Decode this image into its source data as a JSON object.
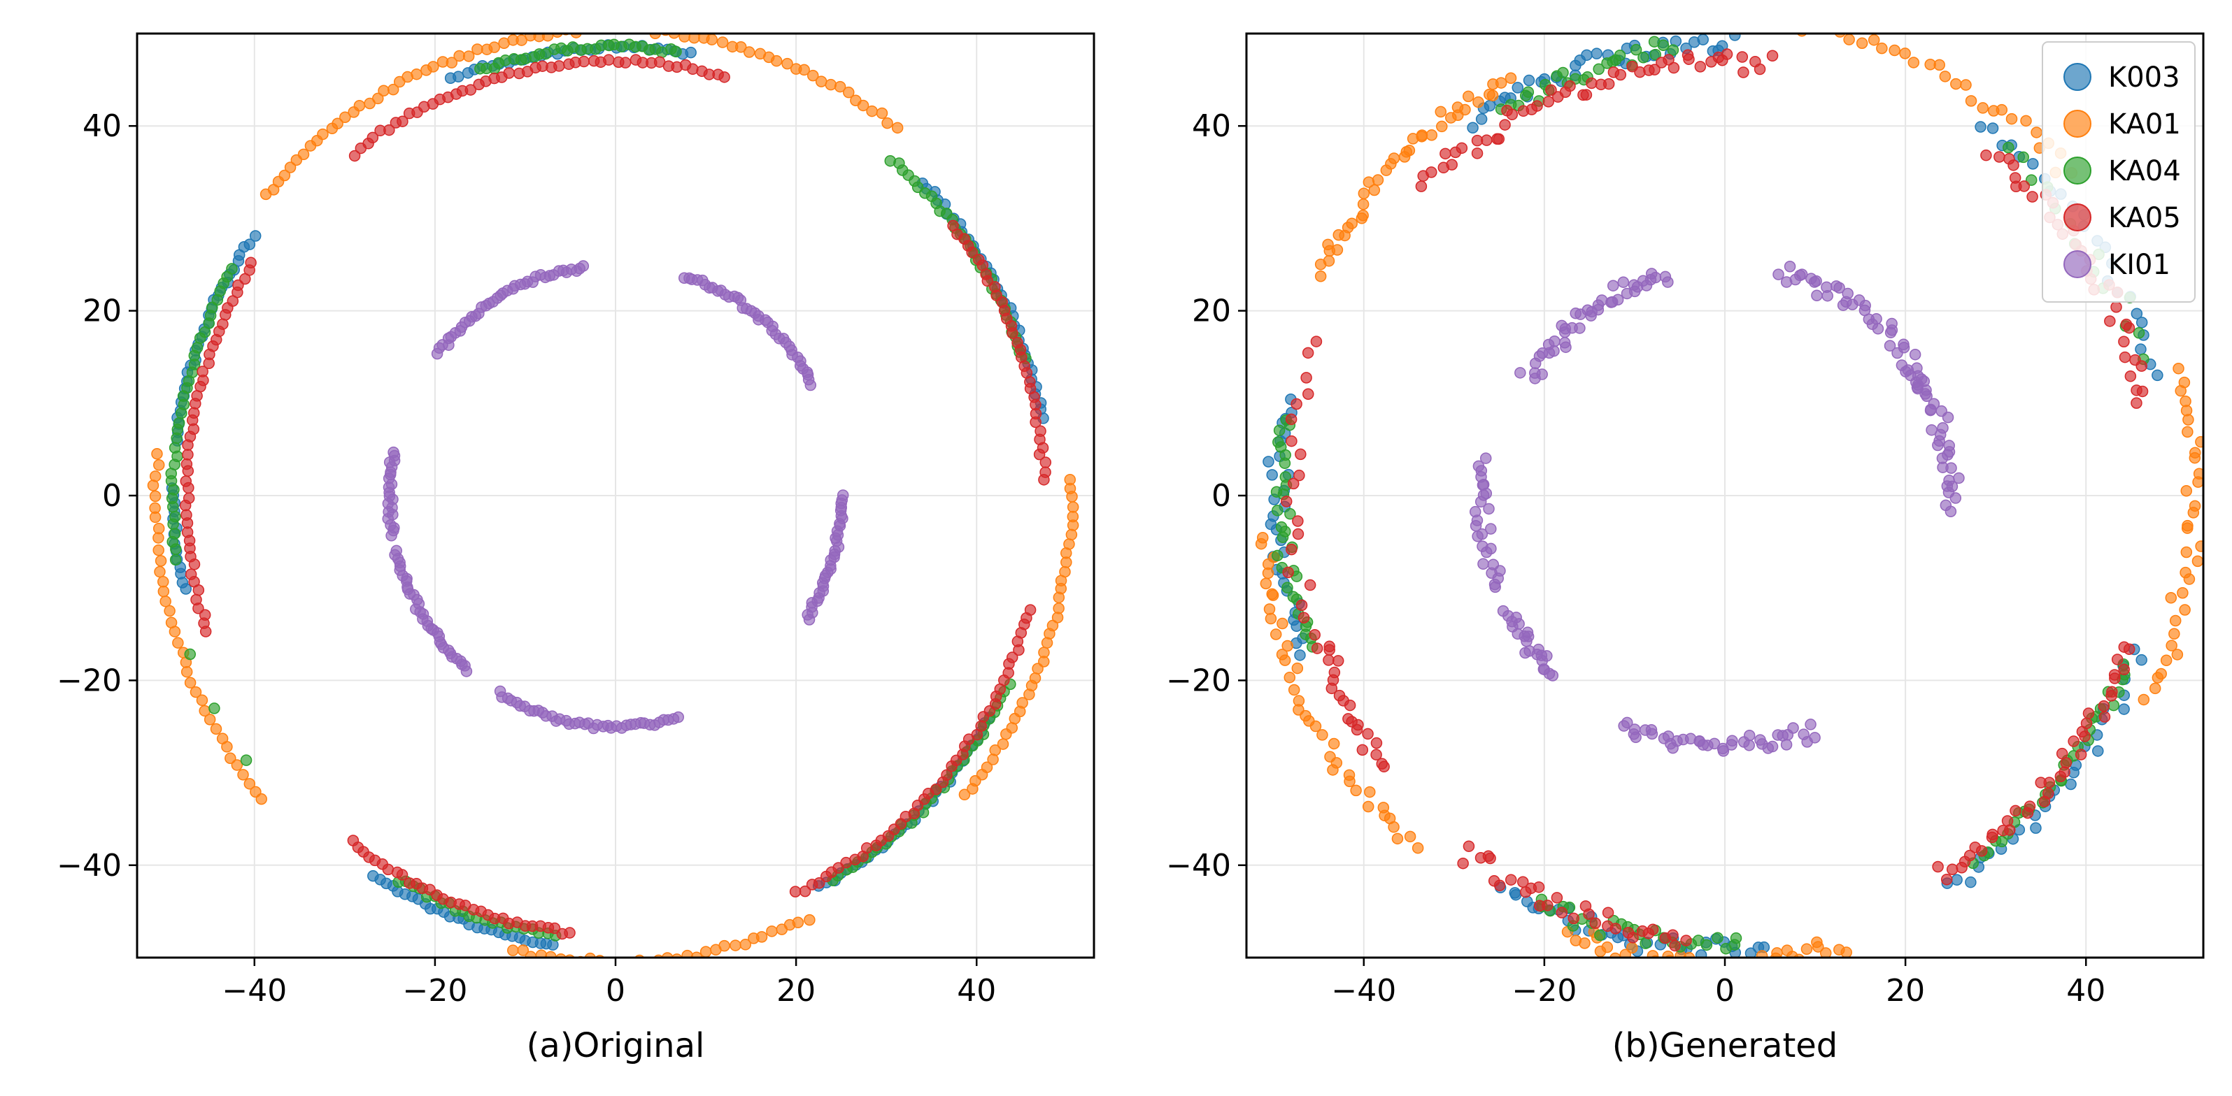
{
  "chart_data": [
    {
      "type": "scatter",
      "title": "",
      "xlabel": "(a)Original",
      "ylabel": "",
      "xlim": [
        -53,
        53
      ],
      "ylim": [
        -50,
        50
      ],
      "xticks": [
        -40,
        -20,
        0,
        20,
        40
      ],
      "yticks": [
        -40,
        -20,
        0,
        20,
        40
      ],
      "xtick_labels": [
        "−40",
        "−20",
        "0",
        "20",
        "40"
      ],
      "ytick_labels": [
        "−40",
        "−20",
        "0",
        "20",
        "40"
      ],
      "grid": true,
      "series": [
        {
          "name": "K003",
          "color": "#1f77b4",
          "arcs": [
            {
              "r": 49,
              "from": 145,
              "to": 173,
              "n": 30
            },
            {
              "r": 49,
              "from": 179,
              "to": 192,
              "n": 14
            },
            {
              "r": 49,
              "from": 237,
              "to": 262,
              "n": 28
            },
            {
              "r": 48,
              "from": 10,
              "to": 45,
              "n": 34
            },
            {
              "r": 48,
              "from": 298,
              "to": 330,
              "n": 30
            },
            {
              "r": 48.5,
              "from": 80,
              "to": 112,
              "n": 30
            }
          ]
        },
        {
          "name": "KA01",
          "color": "#ff7f0e",
          "arcs": [
            {
              "r": 50.5,
              "from": 95,
              "to": 140,
              "n": 40
            },
            {
              "r": 50.5,
              "from": 52,
              "to": 85,
              "n": 28
            },
            {
              "r": 51,
              "from": 175,
              "to": 220,
              "n": 36
            },
            {
              "r": 50.5,
              "from": 257,
              "to": 295,
              "n": 32
            },
            {
              "r": 50.5,
              "from": 320,
              "to": 362,
              "n": 38
            }
          ]
        },
        {
          "name": "KA04",
          "color": "#2ca02c",
          "arcs": [
            {
              "r": 48.5,
              "from": 82,
              "to": 108,
              "n": 30
            },
            {
              "r": 47.5,
              "from": 18,
              "to": 50,
              "n": 32
            },
            {
              "r": 49,
              "from": 150,
              "to": 188,
              "n": 36
            },
            {
              "r": 48,
              "from": 240,
              "to": 262,
              "n": 22
            },
            {
              "r": 48,
              "from": 300,
              "to": 335,
              "n": 34
            },
            {
              "r": 50,
              "from": 200,
              "to": 215,
              "n": 3
            }
          ]
        },
        {
          "name": "KA05",
          "color": "#d62728",
          "arcs": [
            {
              "r": 47,
              "from": 75,
              "to": 128,
              "n": 48
            },
            {
              "r": 47.5,
              "from": 2,
              "to": 38,
              "n": 34
            },
            {
              "r": 47.5,
              "from": 148,
              "to": 198,
              "n": 46
            },
            {
              "r": 47.5,
              "from": 232,
              "to": 264,
              "n": 32
            },
            {
              "r": 47.5,
              "from": 295,
              "to": 345,
              "n": 46
            }
          ]
        },
        {
          "name": "KI01",
          "color": "#9467bd",
          "arcs": [
            {
              "r": 25,
              "from": 98,
              "to": 142,
              "n": 40
            },
            {
              "r": 25,
              "from": 29,
              "to": 72,
              "n": 40
            },
            {
              "r": 25,
              "from": 328,
              "to": 360,
              "n": 34
            },
            {
              "r": 25,
              "from": 239,
              "to": 286,
              "n": 40
            },
            {
              "r": 25,
              "from": 194,
              "to": 229,
              "n": 36
            },
            {
              "r": 25,
              "from": 169,
              "to": 190,
              "n": 22
            }
          ]
        }
      ]
    },
    {
      "type": "scatter",
      "title": "",
      "xlabel": "(b)Generated",
      "ylabel": "",
      "xlim": [
        -53,
        53
      ],
      "ylim": [
        -50,
        50
      ],
      "xticks": [
        -40,
        -20,
        0,
        20,
        40
      ],
      "yticks": [
        -40,
        -20,
        0,
        20,
        40
      ],
      "xtick_labels": [
        "−40",
        "−20",
        "0",
        "20",
        "40"
      ],
      "ytick_labels": [
        "−40",
        "−20",
        "0",
        "20",
        "40"
      ],
      "grid": true,
      "legend": {
        "position": "top-right",
        "entries": [
          "K003",
          "KA01",
          "KA04",
          "KA05",
          "KI01"
        ]
      },
      "series": [
        {
          "name": "K003",
          "color": "#1f77b4",
          "arcs": [
            {
              "r": 49,
              "from": 89,
              "to": 125,
              "n": 36
            },
            {
              "r": 49.5,
              "from": 15,
              "to": 55,
              "n": 24
            },
            {
              "r": 49.5,
              "from": 168,
              "to": 200,
              "n": 30
            },
            {
              "r": 49,
              "from": 240,
              "to": 275,
              "n": 34
            },
            {
              "r": 49,
              "from": 300,
              "to": 340,
              "n": 28
            }
          ]
        },
        {
          "name": "KA01",
          "color": "#ff7f0e",
          "arcs": [
            {
              "r": 51,
              "from": 118,
              "to": 152,
              "n": 40
            },
            {
              "r": 51.5,
              "from": 42,
              "to": 80,
              "n": 28
            },
            {
              "r": 52,
              "from": 335,
              "to": 375,
              "n": 34
            },
            {
              "r": 51.5,
              "from": 185,
              "to": 228,
              "n": 40
            },
            {
              "r": 50.5,
              "from": 250,
              "to": 285,
              "n": 40
            }
          ]
        },
        {
          "name": "KA04",
          "color": "#2ca02c",
          "arcs": [
            {
              "r": 48.5,
              "from": 97,
              "to": 120,
              "n": 26
            },
            {
              "r": 49,
              "from": 170,
              "to": 200,
              "n": 30
            },
            {
              "r": 48.5,
              "from": 245,
              "to": 272,
              "n": 26
            },
            {
              "r": 48,
              "from": 305,
              "to": 338,
              "n": 30
            },
            {
              "r": 48.5,
              "from": 18,
              "to": 50,
              "n": 14
            }
          ]
        },
        {
          "name": "KA05",
          "color": "#d62728",
          "arcs": [
            {
              "r": 47,
              "from": 84,
              "to": 135,
              "n": 50
            },
            {
              "r": 47.5,
              "from": 200,
              "to": 218,
              "n": 20
            },
            {
              "r": 48,
              "from": 233,
              "to": 265,
              "n": 32
            },
            {
              "r": 47.5,
              "from": 300,
              "to": 340,
              "n": 40
            },
            {
              "r": 47.5,
              "from": 12,
              "to": 52,
              "n": 34
            },
            {
              "r": 48,
              "from": 160,
              "to": 200,
              "n": 20
            }
          ]
        },
        {
          "name": "KI01",
          "color": "#9467bd",
          "arcs": [
            {
              "r": 25,
              "from": 105,
              "to": 150,
              "n": 42
            },
            {
              "r": 25,
              "from": 28,
              "to": 76,
              "n": 40
            },
            {
              "r": 25,
              "from": 357,
              "to": 393,
              "n": 32
            },
            {
              "r": 27,
              "from": 245,
              "to": 292,
              "n": 40
            },
            {
              "r": 27,
              "from": 208,
              "to": 225,
              "n": 22
            },
            {
              "r": 27,
              "from": 172,
              "to": 202,
              "n": 26
            }
          ]
        }
      ]
    }
  ]
}
